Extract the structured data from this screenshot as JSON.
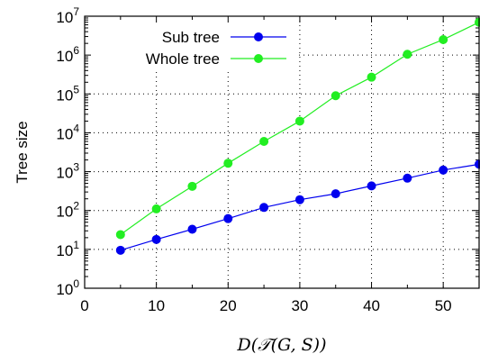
{
  "chart_data": {
    "type": "line",
    "xlabel": "D(𝒯(G, S))",
    "ylabel": "Tree size",
    "xlim": [
      0,
      55
    ],
    "ylim": [
      1,
      10000000
    ],
    "yscale": "log",
    "grid": true,
    "legend_position": "top-left",
    "x_ticks": [
      0,
      10,
      20,
      30,
      40,
      50
    ],
    "x_tick_labels": [
      "0",
      "10",
      "20",
      "30",
      "40",
      "50"
    ],
    "y_ticks": [
      1,
      10,
      100,
      1000,
      10000,
      100000,
      1000000,
      10000000
    ],
    "y_tick_labels": [
      {
        "base": "10",
        "exp": "0"
      },
      {
        "base": "10",
        "exp": "1"
      },
      {
        "base": "10",
        "exp": "2"
      },
      {
        "base": "10",
        "exp": "3"
      },
      {
        "base": "10",
        "exp": "4"
      },
      {
        "base": "10",
        "exp": "5"
      },
      {
        "base": "10",
        "exp": "6"
      },
      {
        "base": "10",
        "exp": "7"
      }
    ],
    "x": [
      5,
      10,
      15,
      20,
      25,
      30,
      35,
      40,
      45,
      50,
      55
    ],
    "series": [
      {
        "name": "Sub tree",
        "color": "#0000ee",
        "values": [
          9.5,
          18,
          33,
          62,
          120,
          190,
          270,
          430,
          680,
          1100,
          1550
        ]
      },
      {
        "name": "Whole tree",
        "color": "#22ee22",
        "values": [
          24,
          110,
          420,
          1650,
          6000,
          20000,
          90000,
          270000,
          1050000,
          2500000,
          7000000
        ]
      }
    ]
  }
}
